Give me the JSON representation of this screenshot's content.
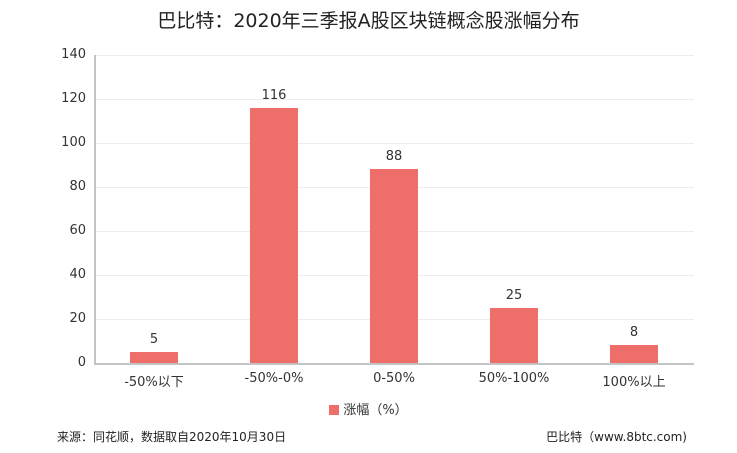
{
  "title": "巴比特：2020年三季报A股区块链概念股涨幅分布",
  "chart_data": {
    "type": "bar",
    "title": "巴比特：2020年三季报A股区块链概念股涨幅分布",
    "categories": [
      "-50%以下",
      "-50%-0%",
      "0-50%",
      "50%-100%",
      "100%以上"
    ],
    "series": [
      {
        "name": "涨幅（%）",
        "values": [
          5,
          116,
          88,
          25,
          8
        ],
        "color": "#ee6e69"
      }
    ],
    "values": [
      5,
      116,
      88,
      25,
      8
    ],
    "xlabel": "",
    "ylabel": "",
    "ylim": [
      0,
      140
    ],
    "yticks": [
      "0",
      "20",
      "40",
      "60",
      "80",
      "100",
      "120",
      "140"
    ],
    "grid": true,
    "legend_position": "bottom"
  },
  "legend": {
    "label": "涨幅（%）"
  },
  "footer": {
    "source": "来源：同花顺，数据取自2020年10月30日",
    "brand": "巴比特（www.8btc.com)"
  }
}
